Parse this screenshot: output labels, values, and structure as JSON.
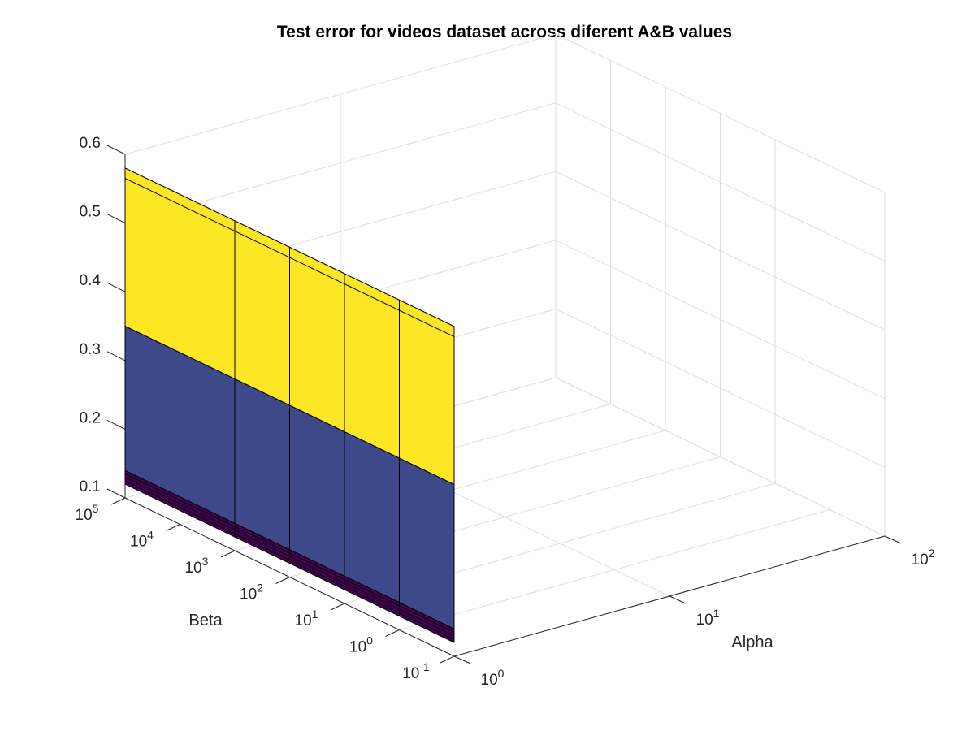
{
  "chart_data": {
    "type": "surface",
    "title": "Test error for videos dataset across diferent A&B values",
    "xlabel": "Alpha",
    "ylabel": "Beta",
    "zlabel": "",
    "x_scale": "log",
    "y_scale": "log",
    "xlim": [
      1,
      100
    ],
    "ylim": [
      0.1,
      100000
    ],
    "zlim": [
      0.1,
      0.6
    ],
    "x_ticks": [
      {
        "base": "10",
        "exp": "0"
      },
      {
        "base": "10",
        "exp": "1"
      },
      {
        "base": "10",
        "exp": "2"
      }
    ],
    "y_ticks": [
      {
        "base": "10",
        "exp": "-1"
      },
      {
        "base": "10",
        "exp": "0"
      },
      {
        "base": "10",
        "exp": "1"
      },
      {
        "base": "10",
        "exp": "2"
      },
      {
        "base": "10",
        "exp": "3"
      },
      {
        "base": "10",
        "exp": "4"
      },
      {
        "base": "10",
        "exp": "5"
      }
    ],
    "z_ticks": [
      "0.1",
      "0.2",
      "0.3",
      "0.4",
      "0.5",
      "0.6"
    ],
    "grid": true,
    "colormap": "viridis",
    "colors": {
      "low": "#440154",
      "mid": "#3e4989",
      "high": "#fde725"
    },
    "beta_values": [
      0.1,
      1,
      10,
      100,
      1000,
      10000,
      100000
    ],
    "surface_alpha": 1,
    "surface_z_profile": [
      0.12,
      0.125,
      0.13,
      0.135,
      0.14,
      0.35,
      0.58
    ]
  }
}
